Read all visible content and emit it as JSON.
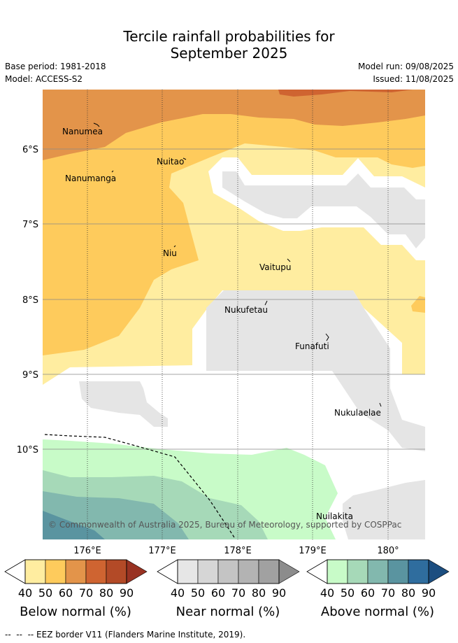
{
  "title_line1": "Tercile rainfall probabilities for",
  "title_line2": "September 2025",
  "meta": {
    "base_period": "Base period: 1981-2018",
    "model": "Model: ACCESS-S2",
    "model_run": "Model run: 09/08/2025",
    "issued": "Issued: 11/08/2025"
  },
  "map": {
    "lat_labels": [
      "6°S",
      "7°S",
      "8°S",
      "9°S",
      "10°S"
    ],
    "lon_labels": [
      "176°E",
      "177°E",
      "178°E",
      "179°E",
      "180°"
    ],
    "places": [
      "Nanumea",
      "Nuitao",
      "Nanumanga",
      "Niu",
      "Vaitupu",
      "Nukufetau",
      "Funafuti",
      "Nukulaelae",
      "Nuilakita"
    ],
    "copyright": "© Commonwealth of Australia 2025, Bureau of Meteorology, supported by COSPPac"
  },
  "legends": [
    {
      "name": "Below normal (%)",
      "ticks": [
        "40",
        "50",
        "60",
        "70",
        "80",
        "90"
      ],
      "colors": [
        "#ffeda0",
        "#fecb5c",
        "#e3944a",
        "#cf6431",
        "#b34a27",
        "#993222"
      ]
    },
    {
      "name": "Near normal (%)",
      "ticks": [
        "40",
        "50",
        "60",
        "70",
        "80",
        "90"
      ],
      "colors": [
        "#e6e6e6",
        "#d6d6d6",
        "#c4c4c4",
        "#b3b3b3",
        "#a1a1a1",
        "#8c8c8c"
      ]
    },
    {
      "name": "Above normal (%)",
      "ticks": [
        "40",
        "50",
        "60",
        "70",
        "80",
        "90"
      ],
      "colors": [
        "#c8fbc8",
        "#a6d9b8",
        "#82b8ae",
        "#5a94a0",
        "#2f6d9e",
        "#1c4e80"
      ]
    }
  ],
  "footnote": "--  --  -- EEZ border V11 (Flanders Marine Institute, 2019)."
}
